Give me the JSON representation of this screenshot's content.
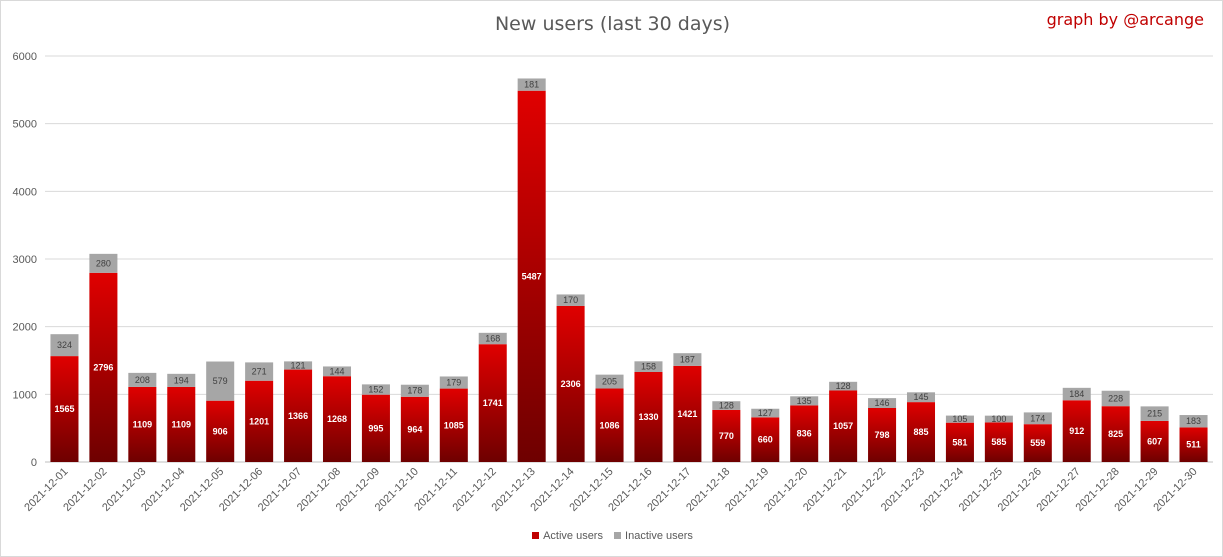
{
  "chart_data": {
    "type": "bar",
    "stacked": true,
    "title": "New users (last 30 days)",
    "credit": "graph by @arcange",
    "categories": [
      "2021-12-01",
      "2021-12-02",
      "2021-12-03",
      "2021-12-04",
      "2021-12-05",
      "2021-12-06",
      "2021-12-07",
      "2021-12-08",
      "2021-12-09",
      "2021-12-10",
      "2021-12-11",
      "2021-12-12",
      "2021-12-13",
      "2021-12-14",
      "2021-12-15",
      "2021-12-16",
      "2021-12-17",
      "2021-12-18",
      "2021-12-19",
      "2021-12-20",
      "2021-12-21",
      "2021-12-22",
      "2021-12-23",
      "2021-12-24",
      "2021-12-25",
      "2021-12-26",
      "2021-12-27",
      "2021-12-28",
      "2021-12-29",
      "2021-12-30"
    ],
    "series": [
      {
        "name": "Active users",
        "color": "#c00000",
        "values": [
          1565,
          2796,
          1109,
          1109,
          906,
          1201,
          1366,
          1268,
          995,
          964,
          1085,
          1741,
          5487,
          2306,
          1086,
          1330,
          1421,
          770,
          660,
          836,
          1057,
          798,
          885,
          581,
          585,
          559,
          912,
          825,
          607,
          511
        ]
      },
      {
        "name": "Inactive users",
        "color": "#a6a6a6",
        "values": [
          324,
          280,
          208,
          194,
          579,
          271,
          121,
          144,
          152,
          178,
          179,
          168,
          181,
          170,
          205,
          158,
          187,
          128,
          127,
          135,
          128,
          146,
          145,
          105,
          100,
          174,
          184,
          228,
          215,
          183
        ]
      }
    ],
    "ylim": [
      0,
      6000
    ],
    "yticks": [
      0,
      1000,
      2000,
      3000,
      4000,
      5000,
      6000
    ],
    "grid": true,
    "legend": "bottom"
  }
}
